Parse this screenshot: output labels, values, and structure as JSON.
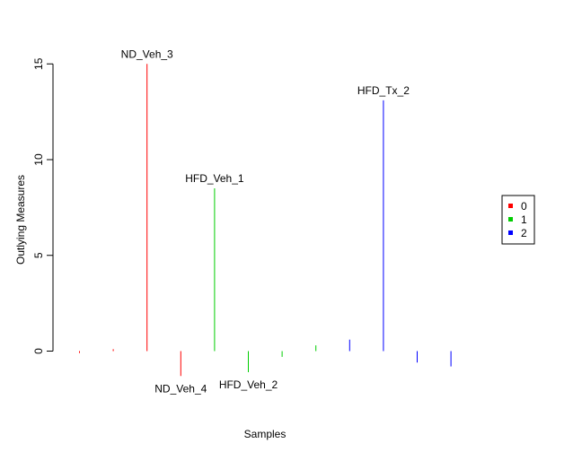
{
  "chart_data": {
    "type": "bar",
    "xlabel": "Samples",
    "ylabel": "Outlying Measures",
    "ylim": [
      -2.5,
      15.5
    ],
    "yticks": [
      0,
      5,
      10,
      15
    ],
    "colors": {
      "0": "#ff0000",
      "1": "#00cd00",
      "2": "#0000ff"
    },
    "samples": [
      {
        "group": "0",
        "value": -0.1,
        "label": ""
      },
      {
        "group": "0",
        "value": 0.1,
        "label": ""
      },
      {
        "group": "0",
        "value": 15.0,
        "label": "ND_Veh_3"
      },
      {
        "group": "0",
        "value": -1.3,
        "label": "ND_Veh_4"
      },
      {
        "group": "1",
        "value": 8.5,
        "label": "HFD_Veh_1"
      },
      {
        "group": "1",
        "value": -1.1,
        "label": "HFD_Veh_2"
      },
      {
        "group": "1",
        "value": -0.3,
        "label": ""
      },
      {
        "group": "1",
        "value": 0.3,
        "label": ""
      },
      {
        "group": "2",
        "value": 0.6,
        "label": ""
      },
      {
        "group": "2",
        "value": 13.1,
        "label": "HFD_Tx_2"
      },
      {
        "group": "2",
        "value": -0.6,
        "label": ""
      },
      {
        "group": "2",
        "value": -0.8,
        "label": ""
      }
    ],
    "legend": {
      "placement": "right",
      "entries": [
        {
          "label": "0",
          "color": "#ff0000"
        },
        {
          "label": "1",
          "color": "#00cd00"
        },
        {
          "label": "2",
          "color": "#0000ff"
        }
      ]
    }
  }
}
